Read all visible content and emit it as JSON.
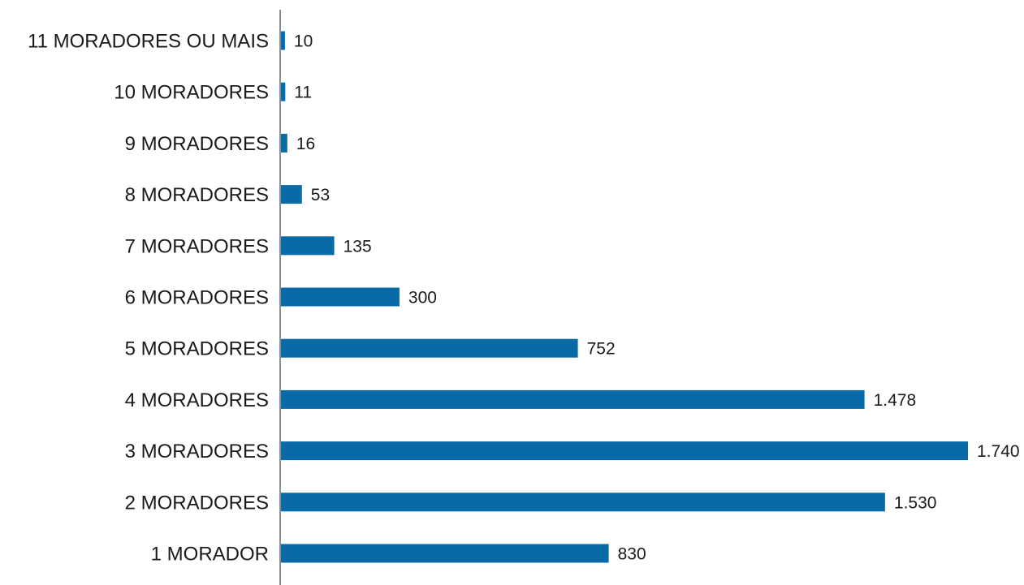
{
  "chart_data": {
    "type": "bar",
    "orientation": "horizontal",
    "title": "",
    "xlabel": "",
    "ylabel": "",
    "categories": [
      "11 MORADORES OU MAIS",
      "10 MORADORES",
      "9 MORADORES",
      "8 MORADORES",
      "7 MORADORES",
      "6 MORADORES",
      "5 MORADORES",
      "4 MORADORES",
      "3 MORADORES",
      "2 MORADORES",
      "1 MORADOR"
    ],
    "values": [
      10,
      11,
      16,
      53,
      135,
      300,
      752,
      1478,
      1740,
      1530,
      830
    ],
    "value_labels": [
      "10",
      "11",
      "16",
      "53",
      "135",
      "300",
      "752",
      "1.478",
      "1.740",
      "1.530",
      "830"
    ],
    "xlim": [
      0,
      1740
    ],
    "grid": false,
    "legend": "none",
    "bar_color": "#0a6aa8",
    "axis_color": "#8c8c8c"
  }
}
